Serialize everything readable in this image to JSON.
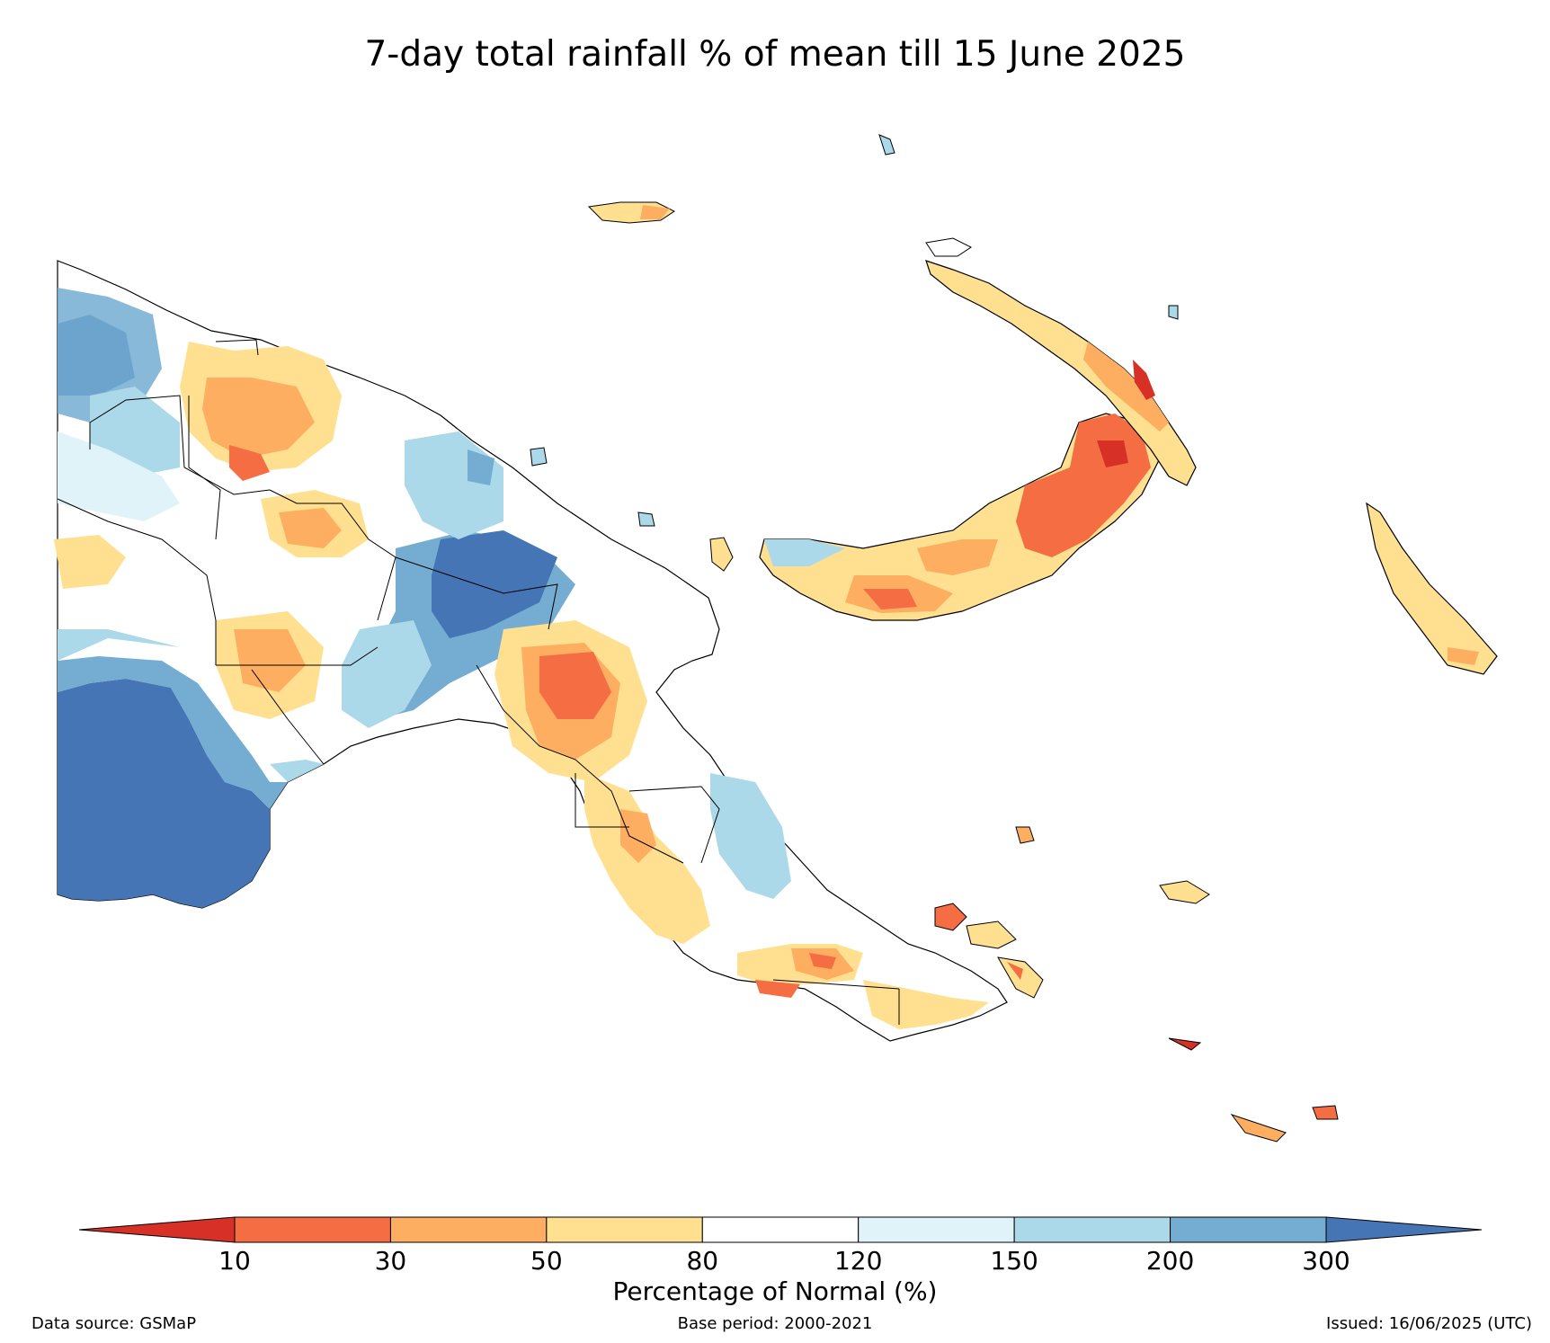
{
  "title": "7-day total rainfall % of mean till 15 June 2025",
  "colorbar": {
    "label": "Percentage of Normal (%)",
    "ticks": [
      "10",
      "30",
      "50",
      "80",
      "120",
      "150",
      "200",
      "300"
    ],
    "colors": [
      "#d73027",
      "#f46d43",
      "#fdae61",
      "#fee090",
      "#ffffff",
      "#e0f3f8",
      "#abd9e9",
      "#74add1",
      "#4575b4"
    ]
  },
  "footer": {
    "source": "Data source: GSMaP",
    "base_period": "Base period: 2000-2021",
    "issued": "Issued: 16/06/2025 (UTC)"
  }
}
